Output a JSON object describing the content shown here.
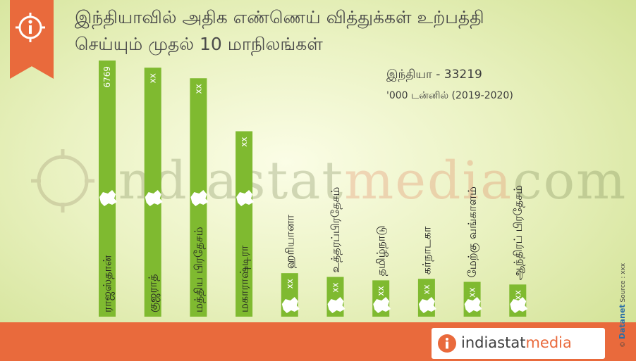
{
  "title_line1": "இந்தியாவில் அதிக எண்ணெய் வித்துக்கள் உற்பத்தி",
  "title_line2": "செய்யும் முதல் 10 மாநிலங்கள்",
  "total_label": "இந்தியா - 33219",
  "unit_label": "'000 டன்னில் (2019-2020)",
  "watermark": {
    "part1": "indiastat",
    "part2": "media",
    "part3": "com"
  },
  "logo": {
    "part1": "indiastat",
    "part2": "media"
  },
  "side_copyright": "©",
  "side_brand": "Datanet",
  "side_source": "Source : xxx",
  "colors": {
    "bar": "#7fba30",
    "bar_label": "#ffffff",
    "accent": "#e96a3c",
    "state_text": "#222222"
  },
  "chart_data": {
    "type": "bar",
    "orientation": "vertical",
    "categories": [
      "ராஜஸ்தான்",
      "குஜராத்",
      "மத்திய பிரதேசம்",
      "மகாராஷ்டிரா",
      "ஹரியானா",
      "உத்தரப்பிரதேசம்",
      "தமிழ்நாடு",
      "கர்நாடகா",
      "மேற்கு வங்காளம்",
      "ஆந்திரப் பிரதேசம்"
    ],
    "value_labels": [
      "6769",
      "xx",
      "xx",
      "xx",
      "xx",
      "xx",
      "xx",
      "xx",
      "xx",
      "xx"
    ],
    "values": [
      6769,
      6580,
      6300,
      4900,
      1150,
      1050,
      960,
      1000,
      920,
      850
    ],
    "ylim": [
      0,
      6769
    ],
    "grid": false,
    "legend": "none"
  }
}
